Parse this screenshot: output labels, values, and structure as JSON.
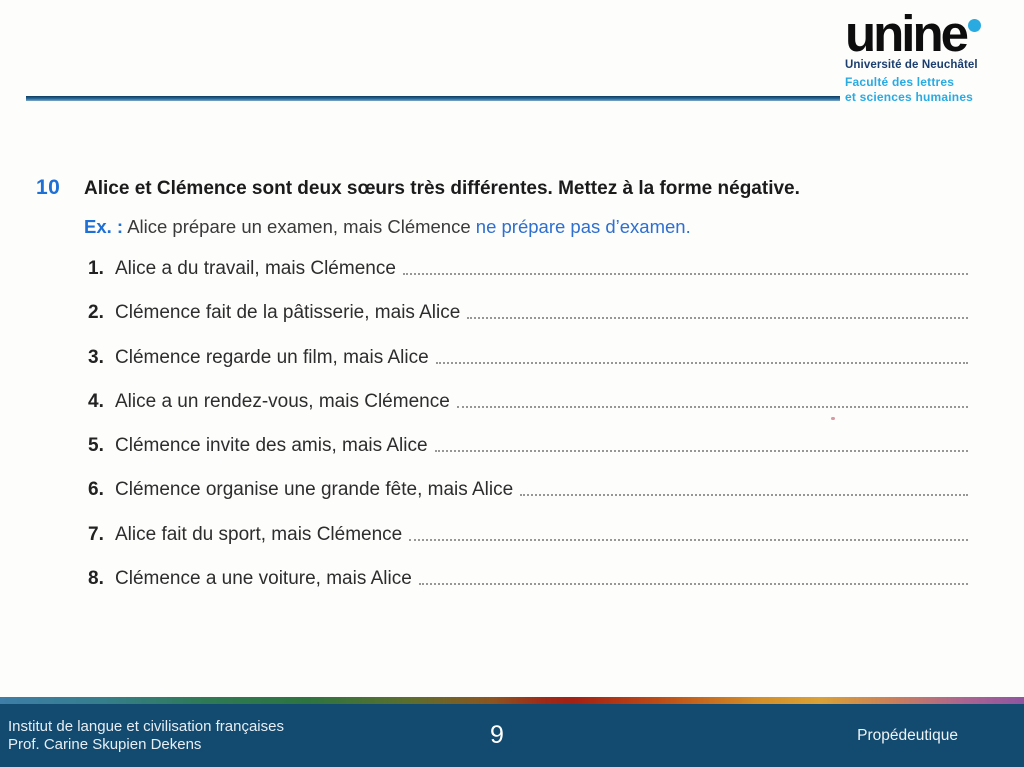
{
  "logo": {
    "wordmark": "unine",
    "university": "Université de Neuchâtel",
    "faculty_line1": "Faculté des lettres",
    "faculty_line2": "et sciences humaines"
  },
  "exercise": {
    "number": "10",
    "title": "Alice et Clémence sont deux sœurs très différentes. Mettez à la forme négative.",
    "example": {
      "label": "Ex. :",
      "prompt": " Alice prépare un examen, mais Clémence ",
      "answer": "ne prépare pas d’examen."
    },
    "items": [
      {
        "num": "1.",
        "text": "Alice a du travail, mais Clémence"
      },
      {
        "num": "2.",
        "text": "Clémence fait de la pâtisserie, mais Alice"
      },
      {
        "num": "3.",
        "text": "Clémence regarde un film, mais Alice"
      },
      {
        "num": "4.",
        "text": "Alice a un rendez-vous, mais Clémence"
      },
      {
        "num": "5.",
        "text": "Clémence invite des amis, mais Alice"
      },
      {
        "num": "6.",
        "text": "Clémence organise une grande fête, mais Alice"
      },
      {
        "num": "7.",
        "text": "Alice fait du sport, mais Clémence"
      },
      {
        "num": "8.",
        "text": "Clémence a une voiture, mais Alice"
      }
    ]
  },
  "footer": {
    "institute": "Institut de langue et civilisation françaises",
    "professor": "Prof. Carine Skupien Dekens",
    "page_number": "9",
    "course": "Propédeutique"
  },
  "colors": {
    "accent_blue": "#1e6fd6",
    "logo_cyan": "#29abe2",
    "logo_navy": "#1c3e6e",
    "top_rule_blue": "#2b6a9c",
    "footer_background": "#124a70"
  }
}
